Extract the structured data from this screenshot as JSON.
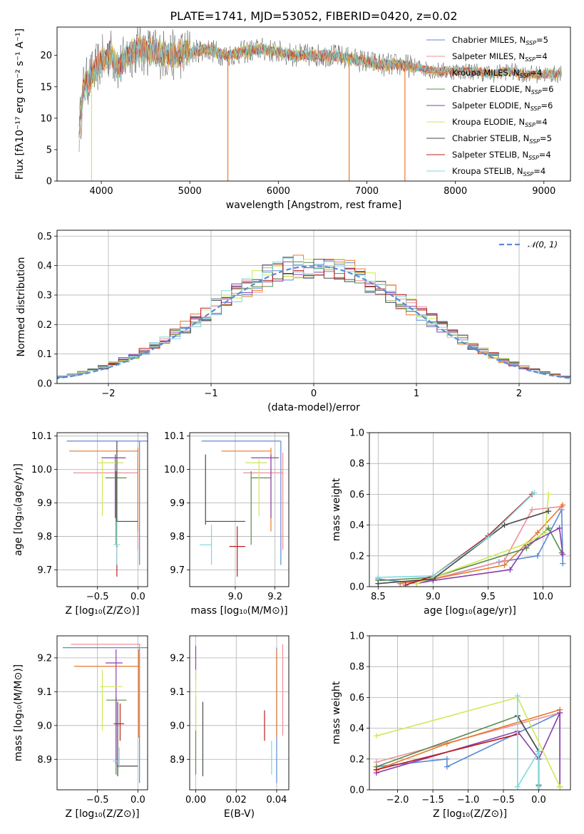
{
  "title": "PLATE=1741, MJD=53052, FIBERID=0420, z=0.02",
  "colors": {
    "chabrier_miles": "#5b8ad6",
    "salpeter_miles": "#ee8f9a",
    "kroupa_miles": "#e8792d",
    "chabrier_elodie": "#5b8a4f",
    "salpeter_elodie": "#8b3fae",
    "kroupa_elodie": "#cdea55",
    "chabrier_stelib": "#4a4a4a",
    "salpeter_stelib": "#b81f1f",
    "kroupa_stelib": "#7ed8dc"
  },
  "chart_data": [
    {
      "type": "line",
      "id": "spectrum",
      "xlabel": "wavelength [Angstrom, rest frame]",
      "ylabel": "Flux [fλ10⁻¹⁷ erg cm⁻² s⁻¹ A⁻¹]",
      "xlim": [
        3500,
        9300
      ],
      "ylim": [
        0,
        24.5
      ],
      "xticks": [
        "4000",
        "5000",
        "6000",
        "7000",
        "8000",
        "9000"
      ],
      "yticks": [
        "0",
        "5",
        "10",
        "15",
        "20"
      ],
      "grid": false,
      "legend_position": "top-right",
      "spectrum_x": [
        3750,
        3800,
        3900,
        4000,
        4100,
        4200,
        4300,
        4400,
        4600,
        4800,
        5000,
        5200,
        5400,
        5600,
        5800,
        6000,
        6200,
        6400,
        6600,
        6800,
        7000,
        7200,
        7400,
        7600,
        7800,
        8000,
        8200,
        8400,
        8600,
        8800,
        9000,
        9200
      ],
      "spectrum_y": [
        8,
        15,
        17,
        19,
        20.5,
        18,
        20,
        21,
        20.5,
        20,
        20.5,
        21,
        20,
        20.5,
        21,
        20.5,
        20,
        20,
        20,
        19.5,
        19,
        18.5,
        18.5,
        18,
        17.5,
        17.5,
        17.5,
        17,
        17.5,
        17,
        17,
        17
      ],
      "series": [
        {
          "name": "Chabrier MILES, N_SSP=5",
          "label_main": "Chabrier MILES, N",
          "label_sub": "SSP",
          "label_tail": "=5"
        },
        {
          "name": "Salpeter MILES, N_SSP=4",
          "label_main": "Salpeter MILES, N",
          "label_sub": "SSP",
          "label_tail": "=4"
        },
        {
          "name": "Kroupa MILES, N_SSP=4",
          "label_main": "Kroupa MILES, N",
          "label_sub": "SSP",
          "label_tail": "=4"
        },
        {
          "name": "Chabrier ELODIE, N_SSP=6",
          "label_main": "Chabrier ELODIE, N",
          "label_sub": "SSP",
          "label_tail": "=6"
        },
        {
          "name": "Salpeter ELODIE, N_SSP=6",
          "label_main": "Salpeter ELODIE, N",
          "label_sub": "SSP",
          "label_tail": "=6"
        },
        {
          "name": "Kroupa ELODIE, N_SSP=4",
          "label_main": "Kroupa ELODIE, N",
          "label_sub": "SSP",
          "label_tail": "=4"
        },
        {
          "name": "Chabrier STELIB, N_SSP=5",
          "label_main": "Chabrier STELIB, N",
          "label_sub": "SSP",
          "label_tail": "=5"
        },
        {
          "name": "Salpeter STELIB, N_SSP=4",
          "label_main": "Salpeter STELIB, N",
          "label_sub": "SSP",
          "label_tail": "=4"
        },
        {
          "name": "Kroupa STELIB, N_SSP=4",
          "label_main": "Kroupa STELIB, N",
          "label_sub": "SSP",
          "label_tail": "=4"
        }
      ],
      "dropouts": [
        {
          "x": 3890,
          "y_top": 15,
          "series": 5
        },
        {
          "x": 5430,
          "y_top": 20.5,
          "series": 2
        },
        {
          "x": 6800,
          "y_top": 19.5,
          "series": 2
        },
        {
          "x": 7430,
          "y_top": 18.5,
          "series": 2
        }
      ]
    },
    {
      "type": "histogram",
      "id": "residuals",
      "xlabel": "(data-model)/error",
      "ylabel": "Normed distribution",
      "xlim": [
        -2.5,
        2.5
      ],
      "ylim": [
        0,
        0.52
      ],
      "xticks": [
        "−2",
        "−1",
        "0",
        "1",
        "2"
      ],
      "xtick_values": [
        -2,
        -1,
        0,
        1,
        2
      ],
      "yticks": [
        "0.0",
        "0.1",
        "0.2",
        "0.3",
        "0.4",
        "0.5"
      ],
      "ytick_values": [
        0,
        0.1,
        0.2,
        0.3,
        0.4,
        0.5
      ],
      "grid": true,
      "reference_curve": {
        "name": "𝒩(0, 1)",
        "mean": 0,
        "sigma": 1
      },
      "bin_width": 0.1
    },
    {
      "type": "errorbar",
      "id": "age-vs-Z",
      "xlabel": "Z [log₁₀(Z/Z⊙)]",
      "ylabel": "age  [log₁₀(age/yr)]",
      "xlim": [
        -1.0,
        0.12
      ],
      "ylim": [
        9.65,
        10.11
      ],
      "xticks": [
        "−0.5",
        "0.0"
      ],
      "xtick_values": [
        -0.5,
        0.0
      ],
      "yticks": [
        "9.7",
        "9.8",
        "9.9",
        "10.0",
        "10.1"
      ],
      "ytick_values": [
        9.7,
        9.8,
        9.9,
        10.0,
        10.1
      ],
      "grid": true,
      "points": [
        {
          "s": 0,
          "x": 0.02,
          "xl": 0.9,
          "xh": 0.1,
          "y": 10.085,
          "yl": 0.37,
          "yh": 0
        },
        {
          "s": 1,
          "x": 0.0,
          "xl": 0.8,
          "xh": 0.0,
          "y": 9.99,
          "yl": 0.23,
          "yh": 0.06
        },
        {
          "s": 2,
          "x": 0.0,
          "xl": 0.85,
          "xh": 0.01,
          "y": 10.055,
          "yl": 0.24,
          "yh": 0.01
        },
        {
          "s": 3,
          "x": -0.27,
          "xl": 0.13,
          "xh": 0.13,
          "y": 9.975,
          "yl": 0.2,
          "yh": 0.02
        },
        {
          "s": 4,
          "x": -0.28,
          "xl": 0.17,
          "xh": 0.13,
          "y": 10.035,
          "yl": 0.18,
          "yh": 0.01
        },
        {
          "s": 5,
          "x": -0.44,
          "xl": 0.05,
          "xh": 0.26,
          "y": 10.02,
          "yl": 0.16,
          "yh": 0.01
        },
        {
          "s": 6,
          "x": -0.26,
          "xl": 0.01,
          "xh": 0.26,
          "y": 9.845,
          "yl": 0.04,
          "yh": 0.24
        },
        {
          "s": 7,
          "x": -0.26,
          "xl": 0.01,
          "xh": 0.01,
          "y": 9.77,
          "yl": 0.09,
          "yh": 0.01
        },
        {
          "s": 8,
          "x": -0.26,
          "xl": 0.04,
          "xh": 0.04,
          "y": 9.775,
          "yl": 0.06,
          "yh": 0.07
        }
      ]
    },
    {
      "type": "errorbar",
      "id": "age-vs-mass",
      "xlabel": "mass [log₁₀(M/M⊙)]",
      "ylabel": "",
      "xlim": [
        8.77,
        9.27
      ],
      "ylim": [
        9.65,
        10.11
      ],
      "xticks": [
        "9.0",
        "9.2"
      ],
      "xtick_values": [
        9.0,
        9.2
      ],
      "yticks": [
        "9.7",
        "9.8",
        "9.9",
        "10.0",
        "10.1"
      ],
      "ytick_values": [
        9.7,
        9.8,
        9.9,
        10.0,
        10.1
      ],
      "grid": true,
      "points": [
        {
          "s": 0,
          "x": 9.23,
          "xl": 0.4,
          "xh": 0.0,
          "y": 10.085,
          "yl": 0.37,
          "yh": 0
        },
        {
          "s": 1,
          "x": 9.24,
          "xl": 0.2,
          "xh": 0.0,
          "y": 9.99,
          "yl": 0.23,
          "yh": 0.06
        },
        {
          "s": 2,
          "x": 9.18,
          "xl": 0.25,
          "xh": 0.0,
          "y": 10.055,
          "yl": 0.24,
          "yh": 0.01
        },
        {
          "s": 3,
          "x": 9.08,
          "xl": 0.0,
          "xh": 0.1,
          "y": 9.975,
          "yl": 0.2,
          "yh": 0.02
        },
        {
          "s": 4,
          "x": 9.18,
          "xl": 0.1,
          "xh": 0.04,
          "y": 10.035,
          "yl": 0.18,
          "yh": 0.01
        },
        {
          "s": 5,
          "x": 9.12,
          "xl": 0.07,
          "xh": 0.04,
          "y": 10.02,
          "yl": 0.16,
          "yh": 0.01
        },
        {
          "s": 6,
          "x": 8.85,
          "xl": 0.0,
          "xh": 0.2,
          "y": 9.845,
          "yl": 0.01,
          "yh": 0.2
        },
        {
          "s": 7,
          "x": 9.01,
          "xl": 0.04,
          "xh": 0.04,
          "y": 9.77,
          "yl": 0.09,
          "yh": 0.06
        },
        {
          "s": 8,
          "x": 8.88,
          "xl": 0.06,
          "xh": 0.0,
          "y": 9.775,
          "yl": 0.06,
          "yh": 0.06
        }
      ]
    },
    {
      "type": "line",
      "id": "mass-weight-vs-age",
      "xlabel": "age  [log₁₀(age/yr)]",
      "ylabel": "mass weight",
      "xlim": [
        8.42,
        10.25
      ],
      "ylim": [
        0,
        1.0
      ],
      "xticks": [
        "8.5",
        "9.0",
        "9.5",
        "10.0"
      ],
      "xtick_values": [
        8.5,
        9.0,
        9.5,
        10.0
      ],
      "yticks": [
        "0.0",
        "0.2",
        "0.4",
        "0.6",
        "0.8",
        "1.0"
      ],
      "ytick_values": [
        0,
        0.2,
        0.4,
        0.6,
        0.8,
        1.0
      ],
      "grid": true,
      "series": [
        {
          "s": 0,
          "x": [
            8.5,
            8.85,
            9.6,
            9.95,
            10.17,
            10.18
          ],
          "y": [
            0.05,
            0.02,
            0.16,
            0.2,
            0.5,
            0.15
          ]
        },
        {
          "s": 1,
          "x": [
            8.7,
            9.0,
            9.65,
            9.9,
            10.17
          ],
          "y": [
            0.02,
            0.05,
            0.17,
            0.5,
            0.52
          ]
        },
        {
          "s": 2,
          "x": [
            8.7,
            9.0,
            9.65,
            9.95,
            10.18
          ],
          "y": [
            0.02,
            0.05,
            0.14,
            0.35,
            0.53
          ]
        },
        {
          "s": 3,
          "x": [
            8.5,
            9.0,
            9.85,
            10.05,
            10.17
          ],
          "y": [
            0.04,
            0.06,
            0.25,
            0.38,
            0.22
          ]
        },
        {
          "s": 4,
          "x": [
            8.85,
            9.0,
            9.7,
            9.85,
            10.15,
            10.18
          ],
          "y": [
            0.02,
            0.04,
            0.11,
            0.27,
            0.38,
            0.21
          ]
        },
        {
          "s": 5,
          "x": [
            8.85,
            9.0,
            9.85,
            10.02,
            10.05
          ],
          "y": [
            0.02,
            0.06,
            0.28,
            0.35,
            0.6
          ]
        },
        {
          "s": 6,
          "x": [
            8.5,
            9.0,
            9.65,
            10.05
          ],
          "y": [
            0.02,
            0.05,
            0.4,
            0.49
          ]
        },
        {
          "s": 7,
          "x": [
            8.75,
            9.0,
            9.5,
            9.9
          ],
          "y": [
            0.01,
            0.07,
            0.33,
            0.6
          ]
        },
        {
          "s": 8,
          "x": [
            8.5,
            9.0,
            9.5,
            9.92
          ],
          "y": [
            0.06,
            0.07,
            0.32,
            0.61
          ]
        }
      ]
    },
    {
      "type": "errorbar",
      "id": "mass-vs-Z",
      "xlabel": "Z [log₁₀(Z/Z⊙)]",
      "ylabel": "mass [log₁₀(M/M⊙)]",
      "xlim": [
        -1.0,
        0.12
      ],
      "ylim": [
        8.81,
        9.265
      ],
      "xticks": [
        "−0.5",
        "0.0"
      ],
      "xtick_values": [
        -0.5,
        0.0
      ],
      "yticks": [
        "8.9",
        "9.0",
        "9.1",
        "9.2"
      ],
      "ytick_values": [
        8.9,
        9.0,
        9.1,
        9.2
      ],
      "grid": true,
      "points": [
        {
          "s": 0,
          "x": 0.02,
          "xl": 0.95,
          "xh": 0.1,
          "y": 9.23,
          "yl": 0.4,
          "yh": 0
        },
        {
          "s": 1,
          "x": 0.02,
          "xl": 0.85,
          "xh": 0.01,
          "y": 9.24,
          "yl": 0.27,
          "yh": 0.0
        },
        {
          "s": 2,
          "x": 0.01,
          "xl": 0.8,
          "xh": 0.01,
          "y": 9.175,
          "yl": 0.21,
          "yh": 0.05
        },
        {
          "s": 3,
          "x": -0.27,
          "xl": 0.12,
          "xh": 0.13,
          "y": 9.075,
          "yl": 0.22,
          "yh": 0.01
        },
        {
          "s": 4,
          "x": -0.27,
          "xl": 0.13,
          "xh": 0.08,
          "y": 9.185,
          "yl": 0.3,
          "yh": 0.04
        },
        {
          "s": 5,
          "x": -0.44,
          "xl": 0.03,
          "xh": 0.25,
          "y": 9.115,
          "yl": 0.13,
          "yh": 0.05
        },
        {
          "s": 6,
          "x": -0.25,
          "xl": 0.01,
          "xh": 0.25,
          "y": 8.88,
          "yl": 0.03,
          "yh": 0.19
        },
        {
          "s": 7,
          "x": -0.22,
          "xl": 0.08,
          "xh": 0.05,
          "y": 9.005,
          "yl": 0.05,
          "yh": 0.06
        },
        {
          "s": 8,
          "x": -0.23,
          "xl": 0.08,
          "xh": 0.0,
          "y": 8.895,
          "yl": 0.02,
          "yh": 0.04
        }
      ]
    },
    {
      "type": "errorbar",
      "id": "mass-vs-ebv",
      "xlabel": "E(B-V)",
      "ylabel": "",
      "xlim": [
        -0.003,
        0.046
      ],
      "ylim": [
        8.81,
        9.265
      ],
      "xticks": [
        "0.00",
        "0.02",
        "0.04"
      ],
      "xtick_values": [
        0.0,
        0.02,
        0.04
      ],
      "yticks": [
        "8.9",
        "9.0",
        "9.1",
        "9.2"
      ],
      "ytick_values": [
        8.9,
        9.0,
        9.1,
        9.2
      ],
      "grid": true,
      "points": [
        {
          "s": 0,
          "x": 0.04,
          "y": 9.23,
          "yl": 0.4,
          "yh": 0
        },
        {
          "s": 1,
          "x": 0.043,
          "y": 9.24,
          "yl": 0.27,
          "yh": 0
        },
        {
          "s": 2,
          "x": 0.04,
          "y": 9.175,
          "yl": 0.21,
          "yh": 0.05
        },
        {
          "s": 3,
          "x": 0.0,
          "y": 9.075,
          "yl": 0.22,
          "yh": 0.01
        },
        {
          "s": 4,
          "x": 0.0,
          "y": 9.185,
          "yl": 0.05,
          "yh": 0.05
        },
        {
          "s": 5,
          "x": 0.0,
          "y": 9.115,
          "yl": 0.13,
          "yh": 0.05
        },
        {
          "s": 6,
          "x": 0.0035,
          "y": 8.88,
          "yl": 0.03,
          "yh": 0.19
        },
        {
          "s": 7,
          "x": 0.034,
          "y": 9.005,
          "yl": 0.05,
          "yh": 0.04
        },
        {
          "s": 8,
          "x": 0.0375,
          "y": 8.895,
          "yl": 0.04,
          "yh": 0.06
        }
      ]
    },
    {
      "type": "line",
      "id": "mass-weight-vs-Z",
      "xlabel": "Z [log₁₀(Z/Z⊙)]",
      "ylabel": "mass weight",
      "xlim": [
        -2.4,
        0.45
      ],
      "ylim": [
        0,
        1.0
      ],
      "xticks": [
        "−2.0",
        "−1.5",
        "−1.0",
        "−0.5",
        "0.0"
      ],
      "xtick_values": [
        -2.0,
        -1.5,
        -1.0,
        -0.5,
        0.0
      ],
      "yticks": [
        "0.0",
        "0.2",
        "0.4",
        "0.6",
        "0.8",
        "1.0"
      ],
      "ytick_values": [
        0,
        0.2,
        0.4,
        0.6,
        0.8,
        1.0
      ],
      "grid": true,
      "series": [
        {
          "s": 0,
          "x": [
            -2.3,
            -1.3,
            -1.3,
            0.3,
            0.3
          ],
          "y": [
            0.15,
            0.2,
            0.15,
            0.5,
            0.02
          ]
        },
        {
          "s": 1,
          "x": [
            -2.3,
            0.3,
            0.3
          ],
          "y": [
            0.18,
            0.5,
            0.02
          ]
        },
        {
          "s": 2,
          "x": [
            -2.3,
            -1.3,
            0.3,
            0.3
          ],
          "y": [
            0.13,
            0.3,
            0.52,
            0.02
          ]
        },
        {
          "s": 3,
          "x": [
            -2.3,
            -0.3,
            0.0,
            0.0
          ],
          "y": [
            0.15,
            0.48,
            0.25,
            0.0
          ]
        },
        {
          "s": 4,
          "x": [
            -2.3,
            -0.3,
            0.0,
            0.3,
            0.3
          ],
          "y": [
            0.11,
            0.38,
            0.2,
            0.5,
            0.02
          ]
        },
        {
          "s": 5,
          "x": [
            -2.3,
            -0.3,
            0.3
          ],
          "y": [
            0.35,
            0.6,
            0.02
          ]
        },
        {
          "s": 6,
          "x": [
            -0.3,
            0.0,
            0.0
          ],
          "y": [
            0.48,
            0.25,
            0.03
          ]
        },
        {
          "s": 7,
          "x": [
            -2.3,
            -0.3
          ],
          "y": [
            0.13,
            0.36
          ]
        },
        {
          "s": 8,
          "x": [
            -0.3,
            -0.3,
            0.0,
            0.0
          ],
          "y": [
            0.61,
            0.02,
            0.25,
            0.02
          ]
        }
      ]
    }
  ]
}
